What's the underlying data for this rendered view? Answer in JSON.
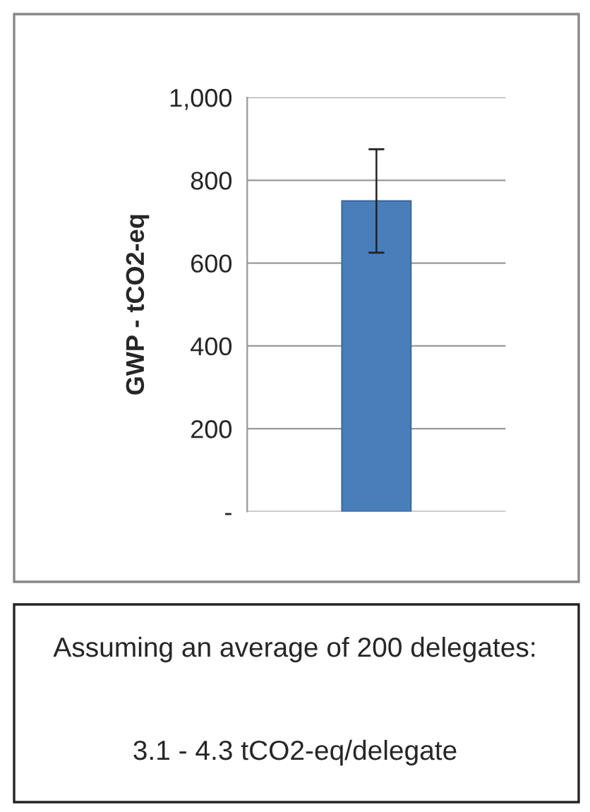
{
  "chart_data": {
    "type": "bar",
    "ylabel": "GWP - tCO2-eq",
    "categories": [
      null
    ],
    "values": [
      750
    ],
    "errors": [
      [
        625,
        875
      ]
    ],
    "color": "#4a7ebb",
    "ylim": [
      0,
      1000
    ],
    "yticks": [
      {
        "value": 0,
        "label": "-"
      },
      200,
      400,
      600,
      800,
      {
        "value": 1000,
        "label": "1,000"
      }
    ],
    "grid": "y",
    "annotations": [
      "Assuming an average of 200 delegates:",
      "3.1 - 4.3 tCO2-eq/delegate"
    ]
  }
}
